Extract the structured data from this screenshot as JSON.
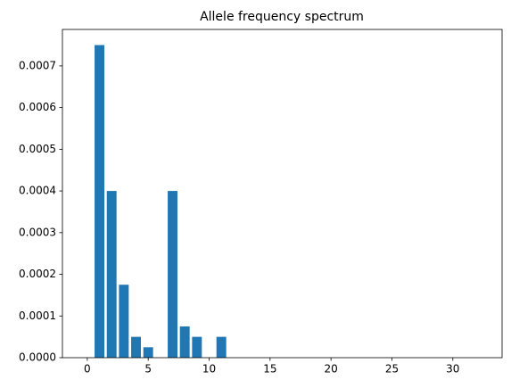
{
  "chart_data": {
    "type": "bar",
    "title": "Allele frequency spectrum",
    "x": [
      0,
      1,
      2,
      3,
      4,
      5,
      6,
      7,
      8,
      9,
      10,
      11,
      12,
      13,
      14,
      15,
      16,
      17,
      18,
      19,
      20,
      21,
      22,
      23,
      24,
      25,
      26,
      27,
      28,
      29,
      30,
      31,
      32
    ],
    "values": [
      0,
      0.00075,
      0.0004,
      0.000175,
      5e-05,
      2.5e-05,
      0,
      0.0004,
      7.5e-05,
      5e-05,
      0,
      5e-05,
      0,
      0,
      0,
      0,
      0,
      0,
      0,
      0,
      0,
      0,
      0,
      0,
      0,
      0,
      0,
      0,
      0,
      0,
      0,
      0,
      0
    ],
    "color": "#1f77b4",
    "xlim": [
      -2.04,
      34.04
    ],
    "xticks": [
      0,
      5,
      10,
      15,
      20,
      25,
      30
    ],
    "ylim": [
      0,
      0.0007875
    ],
    "yticks": [
      {
        "value": 0,
        "label": "0.0000"
      },
      {
        "value": 0.0001,
        "label": "0.0001"
      },
      {
        "value": 0.0002,
        "label": "0.0002"
      },
      {
        "value": 0.0003,
        "label": "0.0003"
      },
      {
        "value": 0.0004,
        "label": "0.0004"
      },
      {
        "value": 0.0005,
        "label": "0.0005"
      },
      {
        "value": 0.0006,
        "label": "0.0006"
      },
      {
        "value": 0.0007,
        "label": "0.0007"
      }
    ],
    "grid": false
  }
}
